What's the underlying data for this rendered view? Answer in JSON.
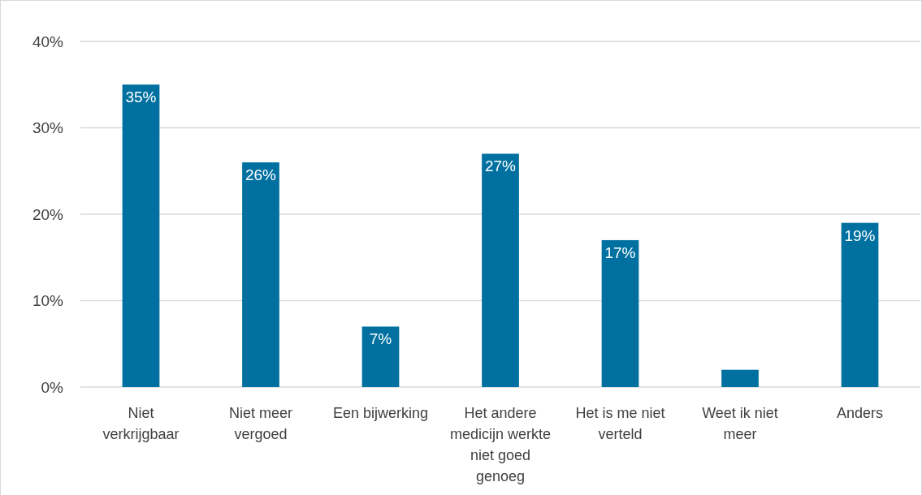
{
  "chart_data": {
    "type": "bar",
    "categories": [
      "Niet verkrijgbaar",
      "Niet meer vergoed",
      "Een bijwerking",
      "Het andere medicijn werkte niet goed genoeg",
      "Het is me niet verteld",
      "Weet ik niet meer",
      "Anders"
    ],
    "values": [
      35,
      26,
      7,
      27,
      17,
      2,
      19
    ],
    "value_labels": [
      "35%",
      "26%",
      "7%",
      "27%",
      "17%",
      null,
      "19%"
    ],
    "color": "#0070a0",
    "ylim": [
      0,
      40
    ],
    "yticks": [
      {
        "value": 0,
        "label": "0%"
      },
      {
        "value": 10,
        "label": "10%"
      },
      {
        "value": 20,
        "label": "20%"
      },
      {
        "value": 30,
        "label": "30%"
      },
      {
        "value": 40,
        "label": "40%"
      }
    ],
    "grid": "y"
  }
}
